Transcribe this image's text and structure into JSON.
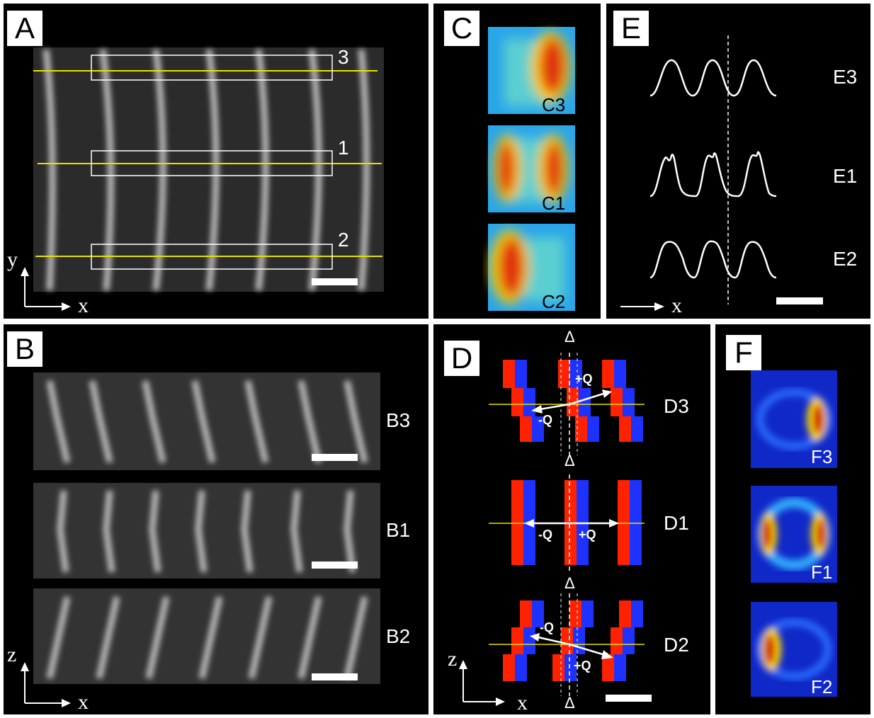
{
  "panels": {
    "A": {
      "label": "A",
      "roi_numbers": [
        "3",
        "1",
        "2"
      ],
      "axis_y": "y",
      "axis_x": "x"
    },
    "B": {
      "label": "B",
      "rows": [
        "B3",
        "B1",
        "B2"
      ],
      "axis_y": "z",
      "axis_x": "x"
    },
    "C": {
      "label": "C",
      "maps": [
        "C3",
        "C1",
        "C2"
      ]
    },
    "D": {
      "label": "D",
      "rows": [
        "D3",
        "D1",
        "D2"
      ],
      "delta": "Δ",
      "plus_q": "+Q",
      "minus_q": "-Q",
      "axis_y": "z",
      "axis_x": "x"
    },
    "E": {
      "label": "E",
      "rows": [
        "E3",
        "E1",
        "E2"
      ],
      "axis_x": "x"
    },
    "F": {
      "label": "F",
      "maps": [
        "F3",
        "F1",
        "F2"
      ]
    }
  },
  "colors": {
    "yellow_line": "#e8e000",
    "red": "#ff2200",
    "blue": "#1e32ff",
    "background": "#000000"
  }
}
